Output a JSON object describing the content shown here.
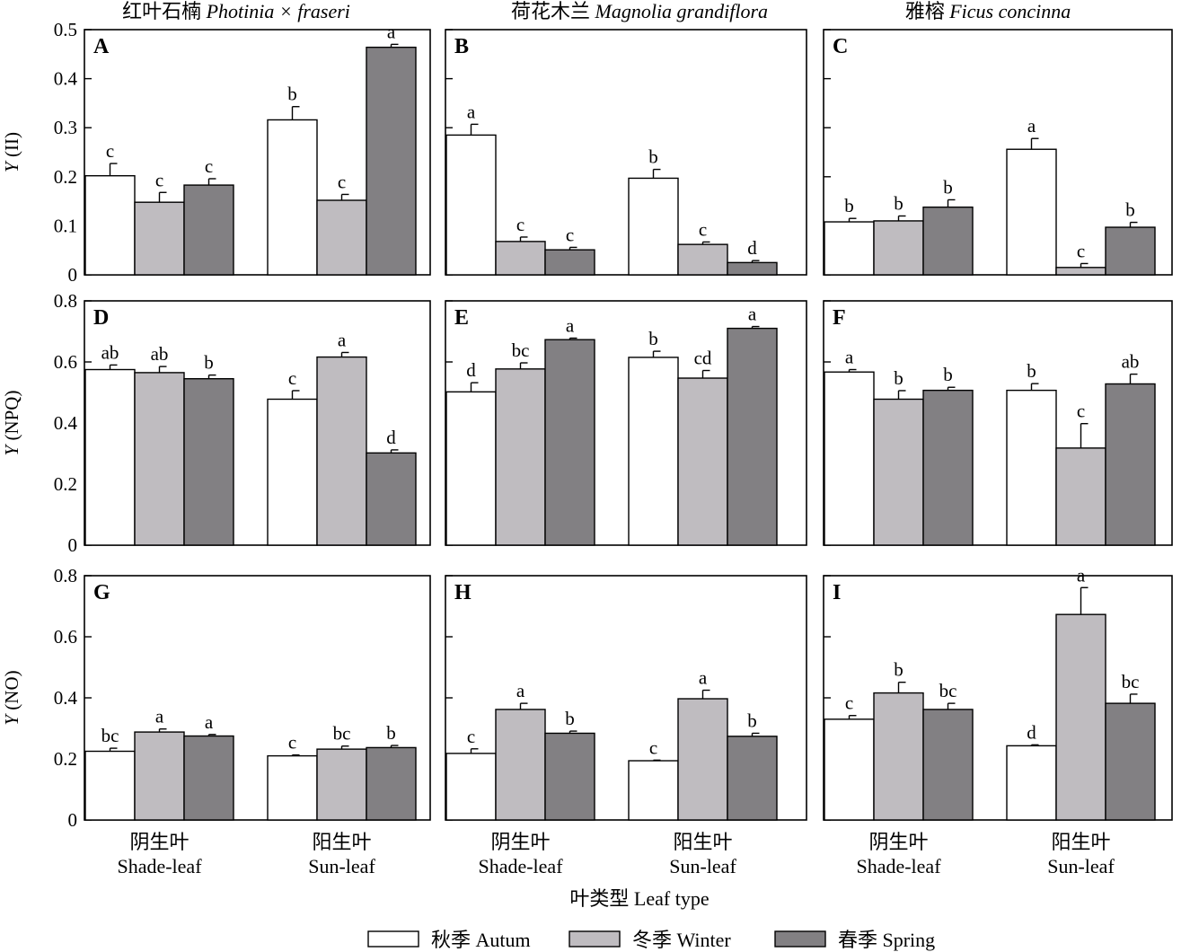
{
  "colors": {
    "Autum": "#ffffff",
    "Winter": "#bfbcc0",
    "Spring": "#828083"
  },
  "chart_data": {
    "type": "bar",
    "column_titles": [
      {
        "cn": "红叶石楠 ",
        "latin": "Photinia × fraseri"
      },
      {
        "cn": "荷花木兰 ",
        "latin": "Magnolia grandiflora"
      },
      {
        "cn": "雅榕 ",
        "latin": "Ficus concinna"
      }
    ],
    "categories": [
      {
        "cn": "阴生叶",
        "en": "Shade-leaf"
      },
      {
        "cn": "阳生叶",
        "en": "Sun-leaf"
      }
    ],
    "series": [
      {
        "name": "秋季 Autum",
        "key": "Autum"
      },
      {
        "name": "冬季 Winter",
        "key": "Winter"
      },
      {
        "name": "春季 Spring",
        "key": "Spring"
      }
    ],
    "xlabel": "叶类型 Leaf type",
    "rows": [
      {
        "ylabel_italic": "Y",
        "ylabel_rest": " (II)",
        "ylim": [
          0,
          0.5
        ],
        "yticks": [
          "0",
          "0.1",
          "0.2",
          "0.3",
          "0.4",
          "0.5"
        ]
      },
      {
        "ylabel_italic": "Y",
        "ylabel_rest": " (NPQ)",
        "ylim": [
          0,
          0.8
        ],
        "yticks": [
          "0",
          "0.2",
          "0.4",
          "0.6",
          "0.8"
        ]
      },
      {
        "ylabel_italic": "Y",
        "ylabel_rest": " (NO)",
        "ylim": [
          0,
          0.8
        ],
        "yticks": [
          "0",
          "0.2",
          "0.4",
          "0.6",
          "0.8"
        ]
      }
    ],
    "panels": [
      {
        "label": "A",
        "row": 0,
        "col": 0,
        "values": [
          [
            0.202,
            0.148,
            0.183
          ],
          [
            0.316,
            0.152,
            0.464
          ]
        ],
        "errors": [
          [
            0.025,
            0.02,
            0.013
          ],
          [
            0.027,
            0.012,
            0.006
          ]
        ],
        "sig": [
          [
            "c",
            "c",
            "c"
          ],
          [
            "b",
            "c",
            "a"
          ]
        ]
      },
      {
        "label": "B",
        "row": 0,
        "col": 1,
        "values": [
          [
            0.285,
            0.068,
            0.051
          ],
          [
            0.197,
            0.062,
            0.025
          ]
        ],
        "errors": [
          [
            0.022,
            0.009,
            0.005
          ],
          [
            0.018,
            0.005,
            0.004
          ]
        ],
        "sig": [
          [
            "a",
            "c",
            "c"
          ],
          [
            "b",
            "c",
            "d"
          ]
        ]
      },
      {
        "label": "C",
        "row": 0,
        "col": 2,
        "values": [
          [
            0.108,
            0.11,
            0.138
          ],
          [
            0.256,
            0.015,
            0.097
          ]
        ],
        "errors": [
          [
            0.007,
            0.01,
            0.015
          ],
          [
            0.022,
            0.008,
            0.01
          ]
        ],
        "sig": [
          [
            "b",
            "b",
            "b"
          ],
          [
            "a",
            "c",
            "b"
          ]
        ]
      },
      {
        "label": "D",
        "row": 1,
        "col": 0,
        "values": [
          [
            0.575,
            0.565,
            0.545
          ],
          [
            0.478,
            0.616,
            0.302
          ]
        ],
        "errors": [
          [
            0.015,
            0.02,
            0.012
          ],
          [
            0.028,
            0.015,
            0.01
          ]
        ],
        "sig": [
          [
            "ab",
            "ab",
            "b"
          ],
          [
            "c",
            "a",
            "d"
          ]
        ]
      },
      {
        "label": "E",
        "row": 1,
        "col": 1,
        "values": [
          [
            0.502,
            0.577,
            0.673
          ],
          [
            0.615,
            0.547,
            0.71
          ]
        ],
        "errors": [
          [
            0.03,
            0.02,
            0.005
          ],
          [
            0.02,
            0.025,
            0.006
          ]
        ],
        "sig": [
          [
            "d",
            "bc",
            "a"
          ],
          [
            "b",
            "cd",
            "a"
          ]
        ]
      },
      {
        "label": "F",
        "row": 1,
        "col": 2,
        "values": [
          [
            0.567,
            0.478,
            0.507
          ],
          [
            0.507,
            0.318,
            0.528
          ]
        ],
        "errors": [
          [
            0.008,
            0.028,
            0.01
          ],
          [
            0.022,
            0.08,
            0.032
          ]
        ],
        "sig": [
          [
            "a",
            "b",
            "b"
          ],
          [
            "b",
            "c",
            "ab"
          ]
        ]
      },
      {
        "label": "G",
        "row": 2,
        "col": 0,
        "values": [
          [
            0.225,
            0.288,
            0.275
          ],
          [
            0.21,
            0.232,
            0.237
          ]
        ],
        "errors": [
          [
            0.01,
            0.01,
            0.005
          ],
          [
            0.003,
            0.01,
            0.007
          ]
        ],
        "sig": [
          [
            "bc",
            "a",
            "a"
          ],
          [
            "c",
            "bc",
            "b"
          ]
        ]
      },
      {
        "label": "H",
        "row": 2,
        "col": 1,
        "values": [
          [
            0.218,
            0.362,
            0.284
          ],
          [
            0.194,
            0.397,
            0.274
          ]
        ],
        "errors": [
          [
            0.015,
            0.02,
            0.007
          ],
          [
            0.002,
            0.028,
            0.01
          ]
        ],
        "sig": [
          [
            "c",
            "a",
            "b"
          ],
          [
            "c",
            "a",
            "b"
          ]
        ]
      },
      {
        "label": "I",
        "row": 2,
        "col": 2,
        "values": [
          [
            0.33,
            0.416,
            0.362
          ],
          [
            0.243,
            0.673,
            0.382
          ]
        ],
        "errors": [
          [
            0.012,
            0.035,
            0.02
          ],
          [
            0.003,
            0.088,
            0.03
          ]
        ],
        "sig": [
          [
            "c",
            "b",
            "bc"
          ],
          [
            "d",
            "a",
            "bc"
          ]
        ]
      }
    ]
  }
}
